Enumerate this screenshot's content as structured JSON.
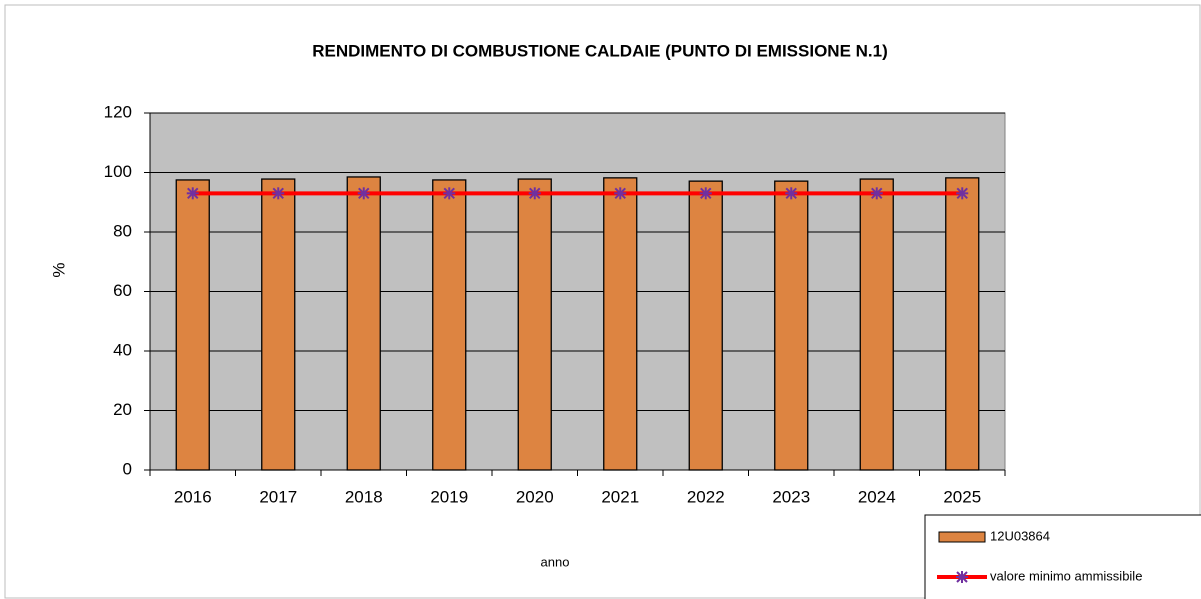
{
  "chart_data": {
    "type": "bar",
    "title": "RENDIMENTO DI COMBUSTIONE CALDAIE (PUNTO DI EMISSIONE N.1)",
    "xlabel": "anno",
    "ylabel": "%",
    "categories": [
      "2016",
      "2017",
      "2018",
      "2019",
      "2020",
      "2021",
      "2022",
      "2023",
      "2024",
      "2025"
    ],
    "series": [
      {
        "name": "12U03864",
        "type": "bar",
        "color": "#dd8441",
        "values": [
          97.5,
          97.8,
          98.5,
          97.5,
          97.8,
          98.2,
          97.1,
          97.1,
          97.8,
          98.2
        ]
      },
      {
        "name": "valore minimo ammissibile",
        "type": "line",
        "color": "#ff0000",
        "marker_color": "#7030a0",
        "values": [
          93,
          93,
          93,
          93,
          93,
          93,
          93,
          93,
          93,
          93
        ]
      }
    ],
    "ylim": [
      0,
      120
    ],
    "yticks": [
      0,
      20,
      40,
      60,
      80,
      100,
      120
    ],
    "grid": true,
    "legend": "lower right"
  }
}
